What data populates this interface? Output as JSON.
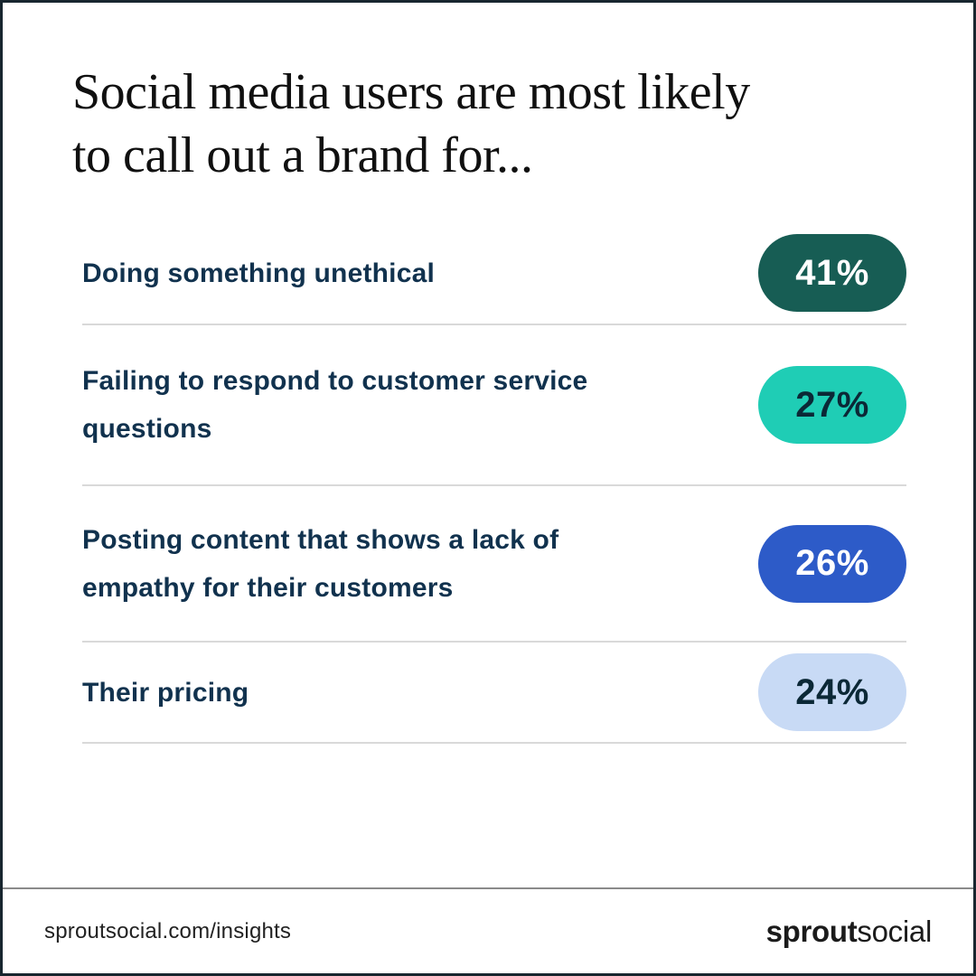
{
  "title": "Social media users are most likely\nto call out a brand for...",
  "rows": [
    {
      "label": "Doing something unethical",
      "value": "41%",
      "pill_bg": "#175d54",
      "pill_fg": "#ffffff",
      "pill_style": "background:#175d54;color:#ffffff"
    },
    {
      "label": "Failing to respond to customer service\nquestions",
      "value": "27%",
      "pill_bg": "#1fcdb5",
      "pill_fg": "#0b2836",
      "pill_style": "background:#1fcdb5;color:#0b2836"
    },
    {
      "label": "Posting content that shows a lack of\nempathy for their customers",
      "value": "26%",
      "pill_bg": "#2d5bc8",
      "pill_fg": "#ffffff",
      "pill_style": "background:#2d5bc8;color:#ffffff"
    },
    {
      "label": "Their pricing",
      "value": "24%",
      "pill_bg": "#c8daf5",
      "pill_fg": "#0b2836",
      "pill_style": "background:#c8daf5;color:#0b2836"
    }
  ],
  "footer": {
    "url": "sproutsocial.com/insights",
    "logo_bold": "sprout",
    "logo_light": "social"
  },
  "colors": {
    "frame_border": "#18262f",
    "divider": "#d9d9d9",
    "footer_divider": "#8a8a8a",
    "label_navy": "#11324e",
    "title_black": "#101010"
  },
  "chart_data": {
    "type": "table",
    "title": "Social media users are most likely to call out a brand for...",
    "categories": [
      "Doing something unethical",
      "Failing to respond to customer service questions",
      "Posting content that shows a lack of empathy for their customers",
      "Their pricing"
    ],
    "values": [
      41,
      27,
      26,
      24
    ],
    "value_unit": "percent",
    "series_colors": [
      "#175d54",
      "#1fcdb5",
      "#2d5bc8",
      "#c8daf5"
    ],
    "legend": false,
    "source_label": "sproutsocial.com/insights"
  }
}
